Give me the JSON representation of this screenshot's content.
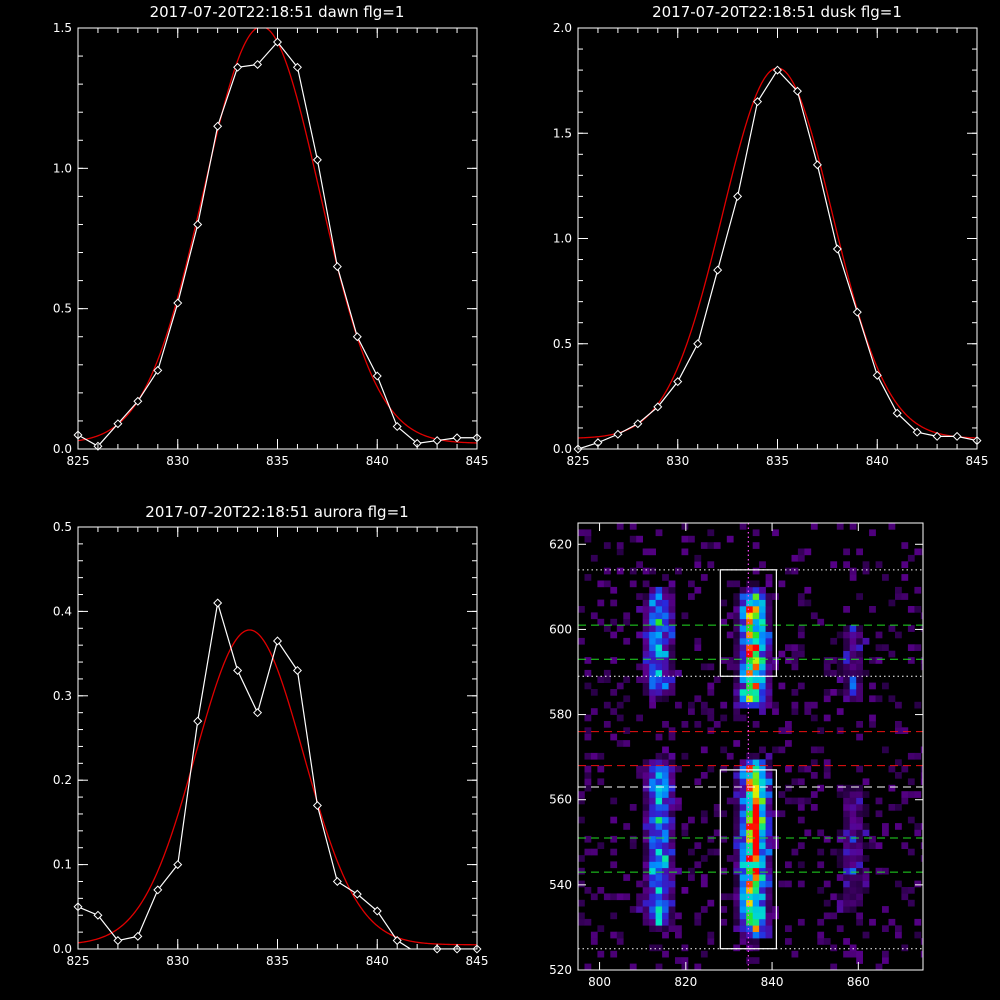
{
  "chart_data": [
    {
      "type": "line",
      "title": "2017-07-20T22:18:51 dawn flg=1",
      "xlim": [
        825,
        845
      ],
      "ylim": [
        0,
        1.5
      ],
      "xticks": [
        "825",
        "830",
        "835",
        "840",
        "845"
      ],
      "yticks": [
        "0.0",
        "0.5",
        "1.0",
        "1.5"
      ],
      "series": [
        {
          "style": "white line with diamond markers",
          "x": [
            825,
            826,
            827,
            828,
            829,
            830,
            831,
            832,
            833,
            834,
            835,
            836,
            837,
            838,
            839,
            840,
            841,
            842,
            843,
            844,
            845
          ],
          "y": [
            0.05,
            0.01,
            0.09,
            0.17,
            0.28,
            0.52,
            0.8,
            1.15,
            1.36,
            1.37,
            1.45,
            1.36,
            1.03,
            0.65,
            0.4,
            0.26,
            0.08,
            0.02,
            0.03,
            0.04,
            0.04
          ]
        },
        {
          "style": "red gaussian fit",
          "fit": {
            "amplitude": 1.485,
            "center": 834.2,
            "sigma": 2.9,
            "offset": 0.02
          }
        }
      ]
    },
    {
      "type": "line",
      "title": "2017-07-20T22:18:51 dusk flg=1",
      "xlim": [
        825,
        845
      ],
      "ylim": [
        0,
        2.0
      ],
      "xticks": [
        "825",
        "830",
        "835",
        "840",
        "845"
      ],
      "yticks": [
        "0.0",
        "0.5",
        "1.0",
        "1.5",
        "2.0"
      ],
      "series": [
        {
          "style": "white line with diamond markers",
          "x": [
            825,
            826,
            827,
            828,
            829,
            830,
            831,
            832,
            833,
            834,
            835,
            836,
            837,
            838,
            839,
            840,
            841,
            842,
            843,
            844,
            845
          ],
          "y": [
            0.0,
            0.03,
            0.07,
            0.12,
            0.2,
            0.32,
            0.5,
            0.85,
            1.2,
            1.65,
            1.8,
            1.7,
            1.35,
            0.95,
            0.65,
            0.35,
            0.17,
            0.08,
            0.06,
            0.06,
            0.04
          ]
        },
        {
          "style": "red gaussian fit",
          "fit": {
            "amplitude": 1.76,
            "center": 835.0,
            "sigma": 2.75,
            "offset": 0.05
          }
        }
      ]
    },
    {
      "type": "line",
      "title": "2017-07-20T22:18:51 aurora flg=1",
      "xlim": [
        825,
        845
      ],
      "ylim": [
        0,
        0.5
      ],
      "xticks": [
        "825",
        "830",
        "835",
        "840",
        "845"
      ],
      "yticks": [
        "0.0",
        "0.1",
        "0.2",
        "0.3",
        "0.4",
        "0.5"
      ],
      "series": [
        {
          "style": "white line with diamond markers",
          "x": [
            825,
            826,
            827,
            828,
            829,
            830,
            831,
            832,
            833,
            834,
            835,
            836,
            837,
            838,
            839,
            840,
            841,
            842,
            843,
            844,
            845
          ],
          "y": [
            0.05,
            0.04,
            0.01,
            0.015,
            0.07,
            0.1,
            0.27,
            0.41,
            0.33,
            0.28,
            0.365,
            0.33,
            0.17,
            0.08,
            0.065,
            0.045,
            0.01,
            -0.005,
            0.0,
            0.0,
            0.0
          ]
        },
        {
          "style": "red gaussian fit",
          "fit": {
            "amplitude": 0.373,
            "center": 833.6,
            "sigma": 2.7,
            "offset": 0.005
          }
        }
      ]
    },
    {
      "type": "heatmap",
      "title": "",
      "xlim": [
        795,
        875
      ],
      "ylim": [
        520,
        625
      ],
      "xticks": [
        "800",
        "820",
        "840",
        "860"
      ],
      "yticks": [
        "520",
        "540",
        "560",
        "580",
        "600",
        "620"
      ],
      "colormap": "black-purple-blue-cyan-green-yellow-red",
      "emission_columns": [
        {
          "x": 813,
          "y_ranges": [
            [
              586,
              606
            ],
            [
              532,
              566
            ]
          ],
          "intensity": 0.6
        },
        {
          "x": 835,
          "y_ranges": [
            [
              584,
              606
            ],
            [
              530,
              566
            ]
          ],
          "intensity": 1.0
        },
        {
          "x": 858,
          "y_ranges": [
            [
              585,
              598
            ],
            [
              535,
              560
            ]
          ],
          "intensity": 0.25
        }
      ],
      "boxes": [
        {
          "x": [
            828,
            841
          ],
          "y": [
            589,
            614
          ]
        },
        {
          "x": [
            828,
            841
          ],
          "y": [
            525,
            567
          ]
        }
      ],
      "vertical_lines": [
        {
          "x": 834.5,
          "style": "magenta dotted"
        }
      ],
      "horizontal_lines": [
        {
          "y": 614,
          "style": "white dotted"
        },
        {
          "y": 601,
          "style": "green dashed"
        },
        {
          "y": 593,
          "style": "green dashed"
        },
        {
          "y": 589,
          "style": "white dotted"
        },
        {
          "y": 576,
          "style": "red dashed"
        },
        {
          "y": 568,
          "style": "red dashed"
        },
        {
          "y": 563,
          "style": "white dashed"
        },
        {
          "y": 551,
          "style": "green dashed"
        },
        {
          "y": 543,
          "style": "green dashed"
        },
        {
          "y": 525,
          "style": "white dotted"
        }
      ]
    }
  ]
}
